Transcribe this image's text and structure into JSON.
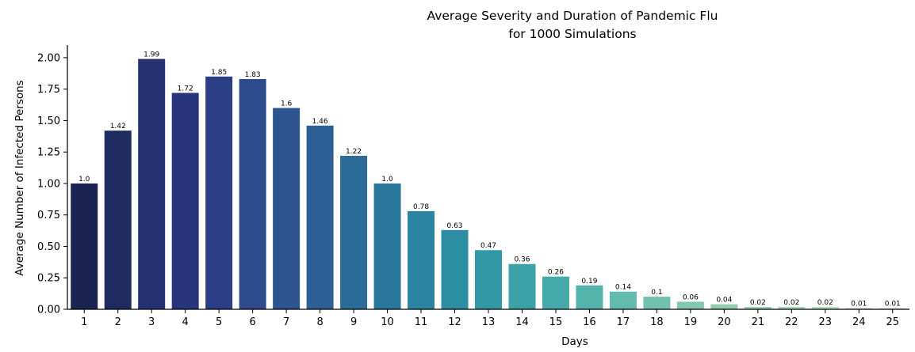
{
  "chart_data": {
    "type": "bar",
    "title": [
      "Average Severity and Duration of Pandemic Flu",
      "for 1000 Simulations"
    ],
    "xlabel": "Days",
    "ylabel": "Average Number of Infected Persons",
    "categories": [
      "1",
      "2",
      "3",
      "4",
      "5",
      "6",
      "7",
      "8",
      "9",
      "10",
      "11",
      "12",
      "13",
      "14",
      "15",
      "16",
      "17",
      "18",
      "19",
      "20",
      "21",
      "22",
      "23",
      "24",
      "25"
    ],
    "values": [
      1.0,
      1.42,
      1.99,
      1.72,
      1.85,
      1.83,
      1.6,
      1.46,
      1.22,
      1.0,
      0.78,
      0.63,
      0.47,
      0.36,
      0.26,
      0.19,
      0.14,
      0.1,
      0.06,
      0.04,
      0.02,
      0.02,
      0.02,
      0.01,
      0.01
    ],
    "value_labels": [
      "1.0",
      "1.42",
      "1.99",
      "1.72",
      "1.85",
      "1.83",
      "1.6",
      "1.46",
      "1.22",
      "1.0",
      "0.78",
      "0.63",
      "0.47",
      "0.36",
      "0.26",
      "0.19",
      "0.14",
      "0.1",
      "0.06",
      "0.04",
      "0.02",
      "0.02",
      "0.02",
      "0.01",
      "0.01"
    ],
    "yticks": [
      "0.00",
      "0.25",
      "0.50",
      "0.75",
      "1.00",
      "1.25",
      "1.50",
      "1.75",
      "2.00"
    ],
    "ylim": [
      0,
      2.1
    ],
    "colors": [
      "#1a2352",
      "#1f2a60",
      "#243070",
      "#28357c",
      "#2c3e86",
      "#2c4a8c",
      "#2c5590",
      "#2c6094",
      "#2b6b98",
      "#2a779c",
      "#2a83a0",
      "#2b8ea3",
      "#3298a6",
      "#3ba2a8",
      "#46aaaa",
      "#54b3ab",
      "#62bbac",
      "#72c1ae",
      "#82c7b0",
      "#92cdb3",
      "#a2d3b6",
      "#b0d9b9",
      "#bddfbd",
      "#c9e4c1",
      "#d4e8c6"
    ],
    "grid": false,
    "legend": "none"
  }
}
